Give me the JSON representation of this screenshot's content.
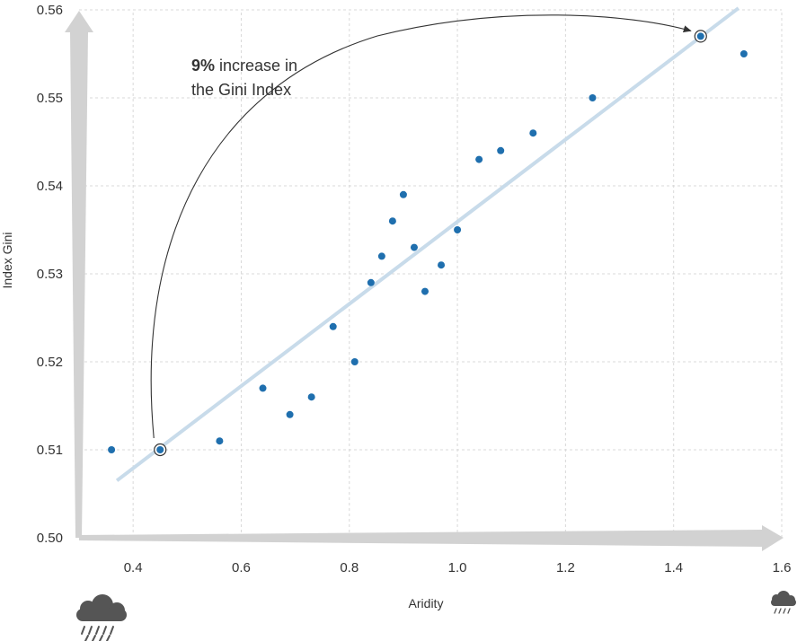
{
  "chart_data": {
    "type": "scatter",
    "xlabel": "Aridity",
    "ylabel": "Index Gini",
    "xlim": [
      0.3,
      1.6
    ],
    "ylim": [
      0.5,
      0.56
    ],
    "x_ticks": [
      "0.4",
      "0.6",
      "0.8",
      "1.0",
      "1.2",
      "1.4",
      "1.6"
    ],
    "y_ticks": [
      "0.50",
      "0.51",
      "0.52",
      "0.53",
      "0.54",
      "0.55",
      "0.56"
    ],
    "grid": true,
    "point_color": "#1f6fae",
    "trend_color": "#c8dbea",
    "points": [
      {
        "x": 0.36,
        "y": 0.51
      },
      {
        "x": 0.45,
        "y": 0.51,
        "highlight": true
      },
      {
        "x": 0.56,
        "y": 0.511
      },
      {
        "x": 0.64,
        "y": 0.517
      },
      {
        "x": 0.69,
        "y": 0.514
      },
      {
        "x": 0.73,
        "y": 0.516
      },
      {
        "x": 0.77,
        "y": 0.524
      },
      {
        "x": 0.81,
        "y": 0.52
      },
      {
        "x": 0.84,
        "y": 0.529
      },
      {
        "x": 0.86,
        "y": 0.532
      },
      {
        "x": 0.88,
        "y": 0.536
      },
      {
        "x": 0.9,
        "y": 0.539
      },
      {
        "x": 0.92,
        "y": 0.533
      },
      {
        "x": 0.94,
        "y": 0.528
      },
      {
        "x": 0.97,
        "y": 0.531
      },
      {
        "x": 1.0,
        "y": 0.535
      },
      {
        "x": 1.04,
        "y": 0.543
      },
      {
        "x": 1.08,
        "y": 0.544
      },
      {
        "x": 1.14,
        "y": 0.546
      },
      {
        "x": 1.25,
        "y": 0.55
      },
      {
        "x": 1.45,
        "y": 0.557,
        "highlight": true
      },
      {
        "x": 1.53,
        "y": 0.555
      }
    ],
    "trend_line": {
      "x": [
        0.37,
        1.52
      ],
      "y": [
        0.5065,
        0.5602
      ]
    },
    "annotation": {
      "bold": "9%",
      "line1_rest": " increase in",
      "line2": "the Gini Index",
      "from": {
        "x": 0.45,
        "y": 0.51
      },
      "to": {
        "x": 1.45,
        "y": 0.557
      }
    },
    "icons": {
      "left": "heavy-rain-cloud-icon",
      "right": "light-rain-cloud-icon"
    }
  }
}
